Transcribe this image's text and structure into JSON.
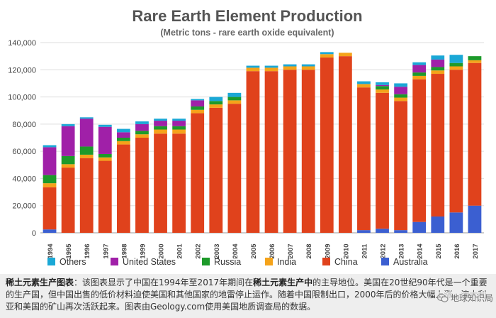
{
  "chart_data": {
    "type": "stacked-bar",
    "title": "Rare Earth Element Production",
    "subtitle": "(Metric tons - rare earth oxide equivalent)",
    "xlabel": "",
    "ylabel": "",
    "ylim": [
      0,
      140000
    ],
    "yticks": [
      0,
      20000,
      40000,
      60000,
      80000,
      100000,
      120000,
      140000
    ],
    "ytick_labels": [
      "0",
      "20,000",
      "40,000",
      "60,000",
      "80,000",
      "100,000",
      "120,000",
      "140,000"
    ],
    "grid": true,
    "legend_position": "bottom",
    "legend_order": [
      "Others",
      "United States",
      "Russia",
      "India",
      "China",
      "Australia"
    ],
    "categories": [
      "1994",
      "1995",
      "1996",
      "1997",
      "1998",
      "1999",
      "2000",
      "2001",
      "2002",
      "2003",
      "2004",
      "2005",
      "2006",
      "2007",
      "2008",
      "2009",
      "2010",
      "2011",
      "2012",
      "2013",
      "2014",
      "2015",
      "2016",
      "2017"
    ],
    "series": [
      {
        "name": "Australia",
        "color": "#3b5fd1",
        "values": [
          2500,
          0,
          0,
          0,
          0,
          0,
          0,
          0,
          0,
          0,
          0,
          0,
          0,
          0,
          0,
          0,
          0,
          2000,
          3000,
          2000,
          8000,
          12000,
          15000,
          20000
        ]
      },
      {
        "name": "China",
        "color": "#e0421c",
        "values": [
          31000,
          48000,
          55000,
          53000,
          65000,
          70000,
          73000,
          73000,
          88000,
          92000,
          95000,
          119000,
          119000,
          120000,
          120000,
          129000,
          130000,
          105000,
          100000,
          95000,
          105000,
          105000,
          105000,
          105000
        ]
      },
      {
        "name": "India",
        "color": "#f5a31a",
        "values": [
          3000,
          2500,
          2500,
          2500,
          2500,
          2500,
          3000,
          3000,
          2500,
          2500,
          2500,
          2500,
          2500,
          2500,
          2500,
          2500,
          2500,
          2500,
          2500,
          2500,
          2500,
          2500,
          2500,
          2000
        ]
      },
      {
        "name": "Russia",
        "color": "#1d9a2a",
        "values": [
          6000,
          6000,
          6000,
          2500,
          2500,
          2500,
          2500,
          2500,
          2500,
          2500,
          2500,
          0,
          0,
          0,
          0,
          0,
          0,
          0,
          2500,
          2500,
          2500,
          2500,
          2500,
          3000
        ]
      },
      {
        "name": "United States",
        "color": "#a020a8",
        "values": [
          20500,
          22000,
          20500,
          20000,
          4000,
          5000,
          4000,
          4000,
          4500,
          0,
          0,
          0,
          0,
          0,
          0,
          0,
          0,
          0,
          800,
          5500,
          5500,
          5500,
          0,
          0
        ]
      },
      {
        "name": "Others",
        "color": "#1aa8d6",
        "values": [
          1500,
          1500,
          1000,
          1500,
          2500,
          2000,
          1500,
          1500,
          1000,
          3000,
          3000,
          1500,
          1500,
          1500,
          1500,
          1500,
          0,
          2000,
          2000,
          2500,
          2000,
          3000,
          6000,
          0
        ]
      }
    ]
  },
  "caption": {
    "bold_lead": "稀土元素生产图表",
    "text_1": "：该图表显示了中国在1994年至2017年期间在",
    "bold_mid": "稀土元素生产中",
    "text_2": "的主导地位。美国在20世纪90年代是一个重要的生产国，但中国出售的低价材料迫使美国和其他国家的地雷停止运作。随着中国限制出口，2000年后的价格大幅上涨，澳大利亚和美国的矿山再次活跃起来。图表由Geology.com使用美国地质调查局的数据。"
  },
  "watermark": {
    "text": "地球知识局",
    "icon": "wechat-icon"
  }
}
